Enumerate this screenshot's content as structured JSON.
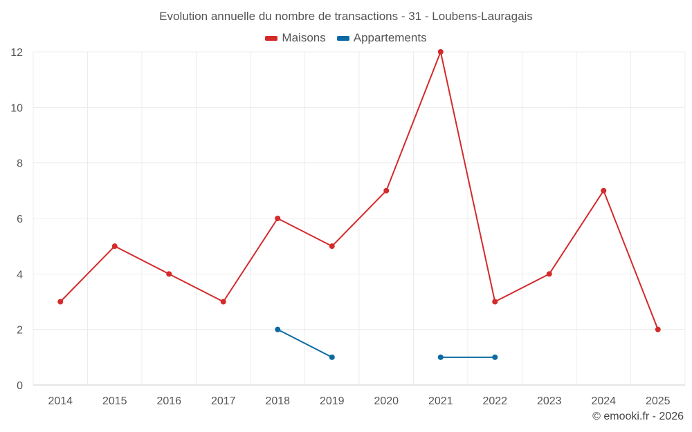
{
  "chart_data": {
    "type": "line",
    "title": "Evolution annuelle du nombre de transactions - 31 - Loubens-Lauragais",
    "categories": [
      "2014",
      "2015",
      "2016",
      "2017",
      "2018",
      "2019",
      "2020",
      "2021",
      "2022",
      "2023",
      "2024",
      "2025"
    ],
    "series": [
      {
        "name": "Maisons",
        "color": "#d42a2a",
        "values": [
          3,
          5,
          4,
          3,
          6,
          5,
          7,
          12,
          3,
          4,
          7,
          2
        ]
      },
      {
        "name": "Appartements",
        "color": "#0b6aa2",
        "values": [
          null,
          null,
          null,
          null,
          2,
          1,
          null,
          1,
          1,
          null,
          null,
          null
        ]
      }
    ],
    "ylim": [
      0,
      12
    ],
    "yticks": [
      0,
      2,
      4,
      6,
      8,
      10,
      12
    ],
    "grid": true,
    "legend": "top-center",
    "credit": "© emooki.fr - 2026"
  }
}
